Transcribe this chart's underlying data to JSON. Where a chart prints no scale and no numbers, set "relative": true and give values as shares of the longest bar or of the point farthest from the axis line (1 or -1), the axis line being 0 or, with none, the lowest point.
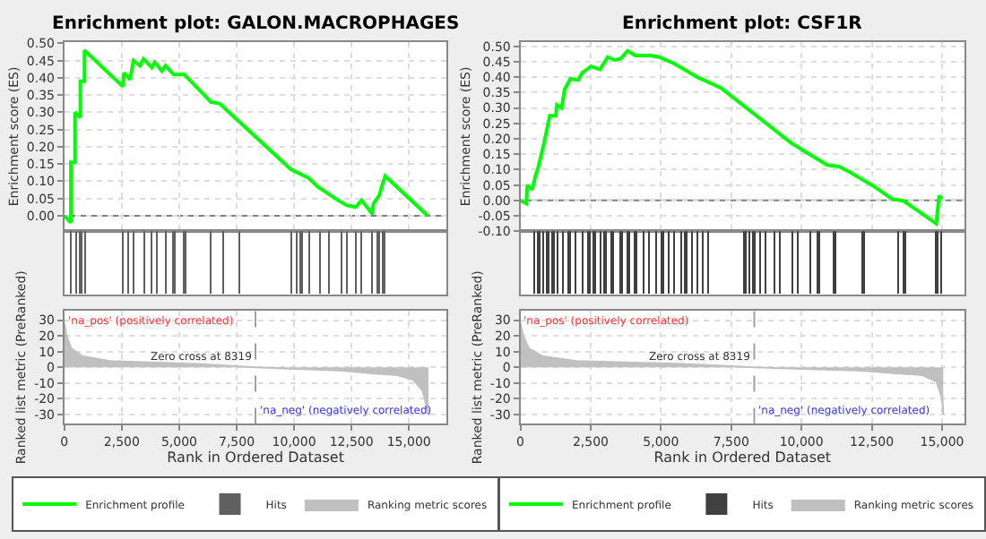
{
  "chart_data": [
    {
      "type": "line",
      "title": "Enrichment plot: GALON.MACROPHAGES",
      "ylabel": "Enrichment score (ES)",
      "xlim": [
        0,
        16650
      ],
      "ylim": [
        -0.045,
        0.505
      ],
      "xticks": [
        {
          "value": 0,
          "label": null
        },
        {
          "value": 2500,
          "label": null
        },
        {
          "value": 5000,
          "label": null
        },
        {
          "value": 7500,
          "label": null
        },
        {
          "value": 10000,
          "label": null
        },
        {
          "value": 12500,
          "label": null
        },
        {
          "value": 15000,
          "label": null
        }
      ],
      "yticks": [
        {
          "value": 0,
          "label": "0.00"
        },
        {
          "value": 0.05,
          "label": "0.05"
        },
        {
          "value": 0.1,
          "label": "0.10"
        },
        {
          "value": 0.15,
          "label": "0.15"
        },
        {
          "value": 0.2,
          "label": "0.20"
        },
        {
          "value": 0.25,
          "label": "0.25"
        },
        {
          "value": 0.3,
          "label": "0.30"
        },
        {
          "value": 0.35,
          "label": "0.35"
        },
        {
          "value": 0.4,
          "label": "0.40"
        },
        {
          "value": 0.45,
          "label": "0.45"
        },
        {
          "value": 0.5,
          "label": "0.50"
        }
      ],
      "tick_labels": "y",
      "grid": true,
      "legend": "bottom",
      "ref_lines": [
        {
          "axis": "y",
          "value": 0,
          "color": "#808080",
          "line_style": "solid"
        }
      ],
      "series": [
        {
          "name": "Enrichment profile",
          "color": "#00ff00",
          "x": [
            0,
            283,
            283,
            463,
            463,
            695,
            695,
            875,
            875,
            2547,
            2599,
            2856,
            3010,
            3293,
            3448,
            3808,
            3937,
            4245,
            4400,
            4760,
            5223,
            6381,
            6767,
            9854,
            10626,
            11012,
            11913,
            12299,
            12685,
            12942,
            13405,
            13456,
            13713,
            13842,
            13971,
            15823
          ],
          "values": [
            0,
            -0.02,
            0.155,
            0.155,
            0.3,
            0.285,
            0.39,
            0.39,
            0.48,
            0.375,
            0.415,
            0.395,
            0.45,
            0.435,
            0.455,
            0.43,
            0.445,
            0.42,
            0.435,
            0.41,
            0.41,
            0.33,
            0.325,
            0.135,
            0.11,
            0.085,
            0.045,
            0.03,
            0.025,
            0.045,
            0.005,
            0.035,
            0.06,
            0.09,
            0.115,
            0
          ]
        }
      ]
    },
    {
      "type": "bar",
      "relative": true,
      "xlim": [
        0,
        16650
      ],
      "tick_labels": false,
      "legend": "bottom",
      "series": [
        {
          "name": "Hits",
          "color": "#606060",
          "x": [
            283,
            515,
            695,
            875,
            2547,
            2779,
            3010,
            3448,
            3808,
            4014,
            4400,
            4760,
            5223,
            6381,
            6896,
            7590,
            9855,
            10112,
            10292,
            10678,
            11141,
            11527,
            12042,
            12299,
            12685,
            12942,
            13405,
            13662,
            13894
          ],
          "values": [
            1,
            1,
            1,
            1,
            1,
            1,
            1,
            1,
            1,
            1,
            1,
            1,
            1,
            1,
            1,
            1,
            1,
            1,
            1,
            1,
            1,
            1,
            1,
            1,
            1,
            1,
            1,
            1,
            1
          ]
        }
      ]
    },
    {
      "type": "area",
      "xlabel": "Rank in Ordered Dataset",
      "ylabel": "Ranked list metric (PreRanked)",
      "xlim": [
        0,
        16650
      ],
      "ylim": [
        -36,
        36
      ],
      "xticks": [
        {
          "value": 0,
          "label": "0"
        },
        {
          "value": 2500,
          "label": "2,500"
        },
        {
          "value": 5000,
          "label": "5,000"
        },
        {
          "value": 7500,
          "label": "7,500"
        },
        {
          "value": 10000,
          "label": "10,000"
        },
        {
          "value": 12500,
          "label": "12,500"
        },
        {
          "value": 15000,
          "label": "15,000"
        }
      ],
      "yticks": [
        -30,
        -20,
        -10,
        0,
        10,
        20,
        30
      ],
      "grid": true,
      "legend": "bottom",
      "ref_lines": [
        {
          "axis": "x",
          "value": 8319,
          "color": "#a0a0a0",
          "line_style": "dashed"
        }
      ],
      "annotations": [
        "'na_pos' (positively correlated)",
        {
          "text": "Zero cross at 8319",
          "x": 8319,
          "y": 0
        },
        "'na_neg' (negatively correlated)"
      ],
      "series": [
        {
          "name": "Ranking metric scores",
          "color": "#c0c0c0",
          "x": [
            0,
            100,
            300,
            800,
            2000,
            4000,
            6000,
            8319,
            10000,
            12000,
            13500,
            14500,
            15200,
            15600,
            15850
          ],
          "values": [
            28,
            20,
            12,
            7,
            4,
            3,
            2,
            0,
            -1,
            -2,
            -4,
            -5,
            -8,
            -15,
            -30
          ]
        }
      ]
    },
    {
      "type": "line",
      "title": "Enrichment plot: CSF1R",
      "ylabel": "Enrichment score (ES)",
      "xlim": [
        0,
        15800
      ],
      "ylim": [
        -0.1,
        0.515
      ],
      "xticks": [
        {
          "value": 0,
          "label": null
        },
        {
          "value": 2500,
          "label": null
        },
        {
          "value": 5000,
          "label": null
        },
        {
          "value": 7500,
          "label": null
        },
        {
          "value": 10000,
          "label": null
        },
        {
          "value": 12500,
          "label": null
        },
        {
          "value": 15000,
          "label": null
        }
      ],
      "yticks": [
        {
          "value": -0.1,
          "label": "-0.10"
        },
        {
          "value": -0.05,
          "label": "-0.05"
        },
        {
          "value": 0,
          "label": "0.00"
        },
        {
          "value": 0.05,
          "label": "0.05"
        },
        {
          "value": 0.1,
          "label": "0.10"
        },
        {
          "value": 0.15,
          "label": "0.15"
        },
        {
          "value": 0.2,
          "label": "0.20"
        },
        {
          "value": 0.25,
          "label": "0.25"
        },
        {
          "value": 0.3,
          "label": "0.30"
        },
        {
          "value": 0.35,
          "label": "0.35"
        },
        {
          "value": 0.4,
          "label": "0.40"
        },
        {
          "value": 0.45,
          "label": "0.45"
        },
        {
          "value": 0.5,
          "label": "0.50"
        }
      ],
      "tick_labels": "y",
      "grid": true,
      "legend": "bottom",
      "ref_lines": [
        {
          "axis": "y",
          "value": 0,
          "color": "#808080",
          "line_style": "solid"
        }
      ],
      "series": [
        {
          "name": "Enrichment profile",
          "color": "#00ff00",
          "x": [
            0,
            210,
            252,
            420,
            524,
            629,
            839,
            1049,
            1259,
            1301,
            1469,
            1573,
            1783,
            2056,
            2203,
            2517,
            2832,
            3105,
            3357,
            3566,
            3818,
            4091,
            4615,
            4930,
            5455,
            6294,
            7133,
            9650,
            10909,
            11329,
            11748,
            12587,
            13217,
            13636,
            14790,
            14895,
            15000
          ],
          "values": [
            0,
            -0.01,
            0.05,
            0.035,
            0.075,
            0.105,
            0.185,
            0.275,
            0.275,
            0.31,
            0.3,
            0.36,
            0.395,
            0.39,
            0.415,
            0.435,
            0.425,
            0.465,
            0.455,
            0.46,
            0.485,
            0.47,
            0.47,
            0.465,
            0.445,
            0.4,
            0.365,
            0.185,
            0.115,
            0.11,
            0.09,
            0.045,
            0.005,
            -0.002,
            -0.075,
            0.015,
            0.005
          ]
        }
      ]
    },
    {
      "type": "bar",
      "relative": true,
      "xlim": [
        0,
        15800
      ],
      "tick_labels": false,
      "legend": "bottom",
      "series": [
        {
          "name": "Hits",
          "color": "#404040",
          "x": [
            462,
            629,
            797,
            965,
            1154,
            1322,
            1511,
            1720,
            1930,
            2203,
            2413,
            2622,
            2832,
            3000,
            3252,
            3566,
            3818,
            4091,
            4364,
            4573,
            4825,
            5035,
            5245,
            5455,
            5707,
            5874,
            6084,
            6294,
            6462,
            6672,
            7972,
            8140,
            8287,
            8497,
            8707,
            9021,
            9231,
            9650,
            9860,
            10280,
            10595,
            11161,
            12168,
            13427,
            13637,
            14791,
            14938
          ],
          "values": [
            1,
            1,
            1,
            1,
            1,
            1,
            1,
            1,
            1,
            1,
            1,
            1,
            1,
            1,
            1,
            1,
            1,
            1,
            1,
            1,
            1,
            1,
            1,
            1,
            1,
            1,
            1,
            1,
            1,
            1,
            1,
            1,
            1,
            1,
            1,
            1,
            1,
            1,
            1,
            1,
            1,
            1,
            1,
            1,
            1,
            1,
            1
          ]
        }
      ]
    },
    {
      "type": "area",
      "xlabel": "Rank in Ordered Dataset",
      "ylabel": "Ranked list metric (PreRanked)",
      "xlim": [
        0,
        15800
      ],
      "ylim": [
        -36,
        36
      ],
      "xticks": [
        {
          "value": 0,
          "label": "0"
        },
        {
          "value": 2500,
          "label": "2,500"
        },
        {
          "value": 5000,
          "label": "5,000"
        },
        {
          "value": 7500,
          "label": "7,500"
        },
        {
          "value": 10000,
          "label": "10,000"
        },
        {
          "value": 12500,
          "label": "12,500"
        },
        {
          "value": 15000,
          "label": "15,000"
        }
      ],
      "yticks": [
        -30,
        -20,
        -10,
        0,
        10,
        20,
        30
      ],
      "grid": true,
      "legend": "bottom",
      "ref_lines": [
        {
          "axis": "x",
          "value": 8319,
          "color": "#a0a0a0",
          "line_style": "dashed"
        }
      ],
      "annotations": [
        "'na_pos' (positively correlated)",
        {
          "text": "Zero cross at 8319",
          "x": 8319,
          "y": 0
        },
        "'na_neg' (negatively correlated)"
      ],
      "series": [
        {
          "name": "Ranking metric scores",
          "color": "#c0c0c0",
          "x": [
            0,
            100,
            300,
            800,
            2000,
            4000,
            6000,
            8319,
            10000,
            12000,
            13500,
            14300,
            14800,
            15000,
            15042
          ],
          "values": [
            28,
            20,
            12,
            7,
            4,
            3,
            2,
            0,
            -1,
            -2,
            -4,
            -5,
            -9,
            -20,
            -30
          ]
        }
      ]
    }
  ]
}
